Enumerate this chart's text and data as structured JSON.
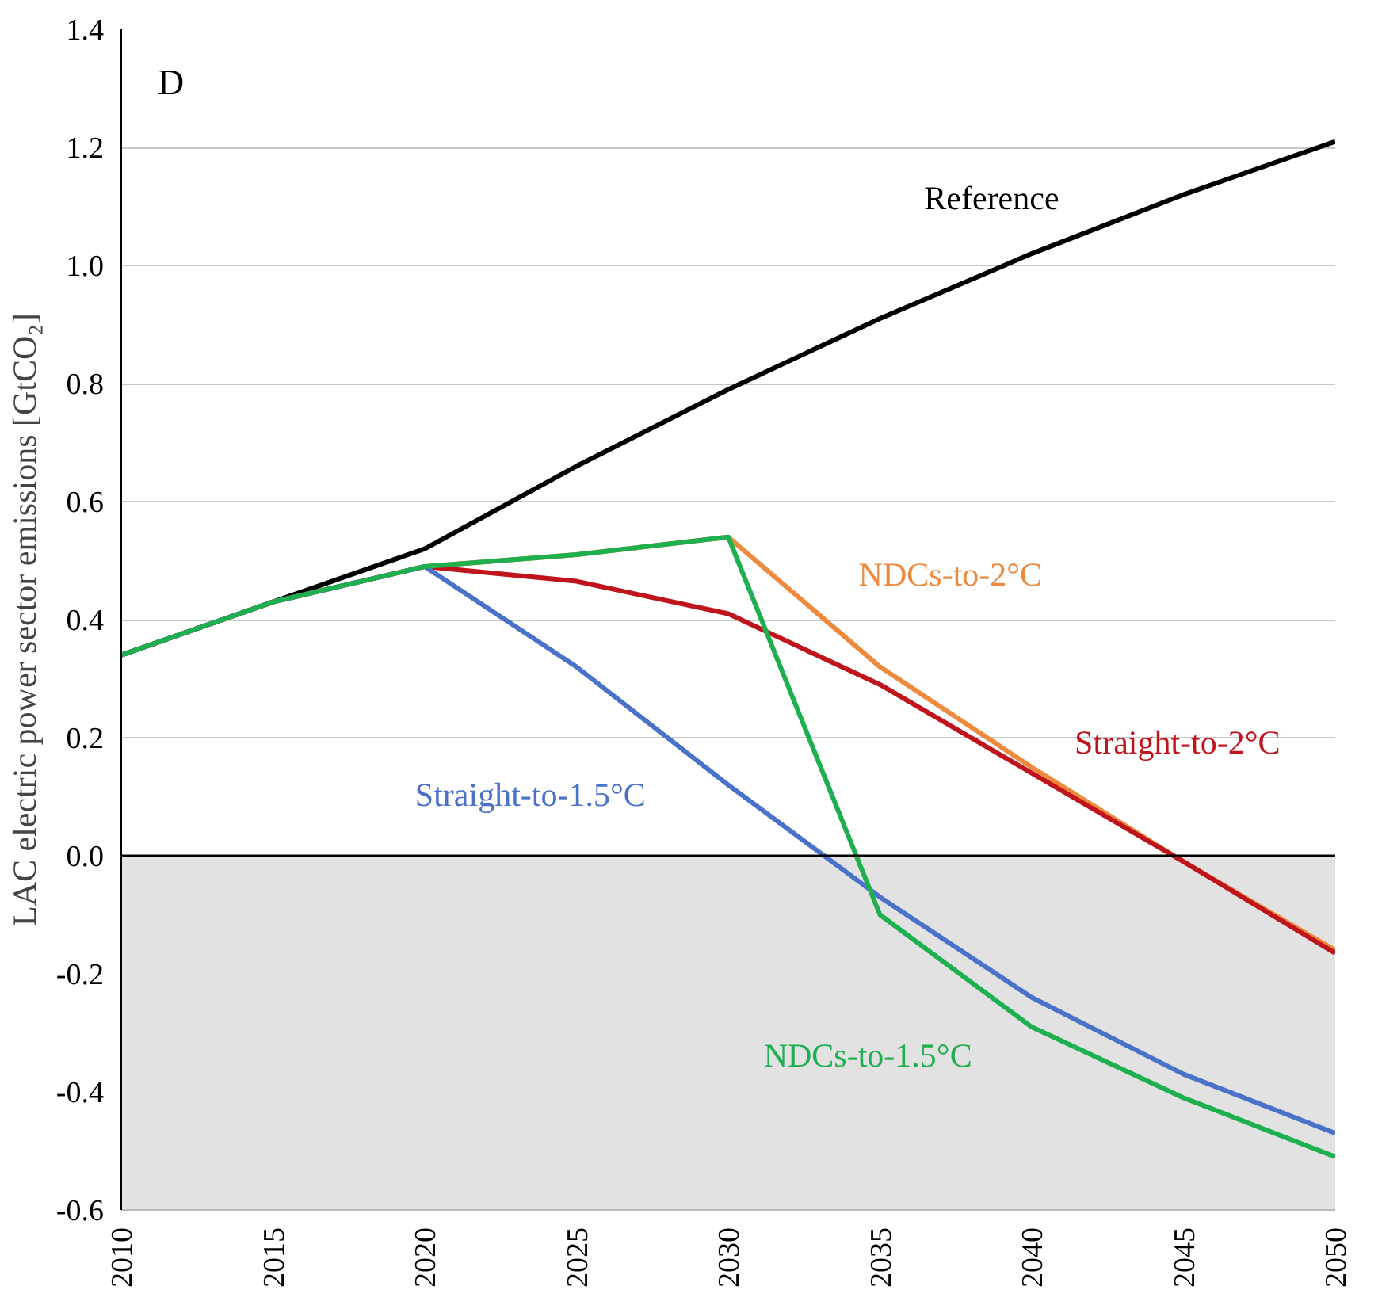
{
  "chart_data": {
    "type": "line",
    "ylabel": "LAC electric power sector emissions [GtCO₂]",
    "annotations": [
      "D"
    ],
    "x": [
      2010,
      2015,
      2020,
      2025,
      2030,
      2035,
      2040,
      2045,
      2050
    ],
    "xlim": [
      2010,
      2050
    ],
    "xticks": [
      2010,
      2015,
      2020,
      2025,
      2030,
      2035,
      2040,
      2045,
      2050
    ],
    "ylim": [
      -0.6,
      1.4
    ],
    "yticks": [
      {
        "value": -0.6,
        "label": "-0.6"
      },
      {
        "value": -0.4,
        "label": "-0.4"
      },
      {
        "value": -0.2,
        "label": "-0.2"
      },
      {
        "value": 0,
        "label": "0.0"
      },
      {
        "value": 0.2,
        "label": "0.2"
      },
      {
        "value": 0.4,
        "label": "0.4"
      },
      {
        "value": 0.6,
        "label": "0.6"
      },
      {
        "value": 0.8,
        "label": "0.8"
      },
      {
        "value": 1.0,
        "label": "1.0"
      },
      {
        "value": 1.2,
        "label": "1.2"
      },
      {
        "value": 1.4,
        "label": "1.4"
      }
    ],
    "grid": "y",
    "legend": false,
    "marker": "none",
    "line_style": "solid",
    "ref_lines": [
      {
        "axis": "y",
        "value": 0,
        "color": "#000000"
      }
    ],
    "bands": [
      {
        "axis": "y",
        "from": -0.6,
        "to": 0,
        "color": "#e2e2e2"
      }
    ],
    "series": [
      {
        "name": "Reference",
        "color": "#000000",
        "values": [
          0.34,
          0.43,
          0.52,
          0.66,
          0.79,
          0.91,
          1.02,
          1.12,
          1.21
        ]
      },
      {
        "name": "NDCs-to-2°C",
        "color": "#ee8a3e",
        "values": [
          0.34,
          0.43,
          0.49,
          0.51,
          0.54,
          0.32,
          0.15,
          -0.01,
          -0.16
        ]
      },
      {
        "name": "Straight-to-2°C",
        "color": "#c0141c",
        "values": [
          0.34,
          0.43,
          0.49,
          0.465,
          0.41,
          0.29,
          0.14,
          -0.01,
          -0.165
        ]
      },
      {
        "name": "Straight-to-1.5°C",
        "color": "#4a72c8",
        "values": [
          0.34,
          0.43,
          0.49,
          0.32,
          0.12,
          -0.07,
          -0.24,
          -0.37,
          -0.47
        ]
      },
      {
        "name": "NDCs-to-1.5°C",
        "color": "#1eaf4e",
        "values": [
          0.34,
          0.43,
          0.49,
          0.51,
          0.54,
          -0.1,
          -0.29,
          -0.41,
          -0.51
        ]
      }
    ]
  }
}
